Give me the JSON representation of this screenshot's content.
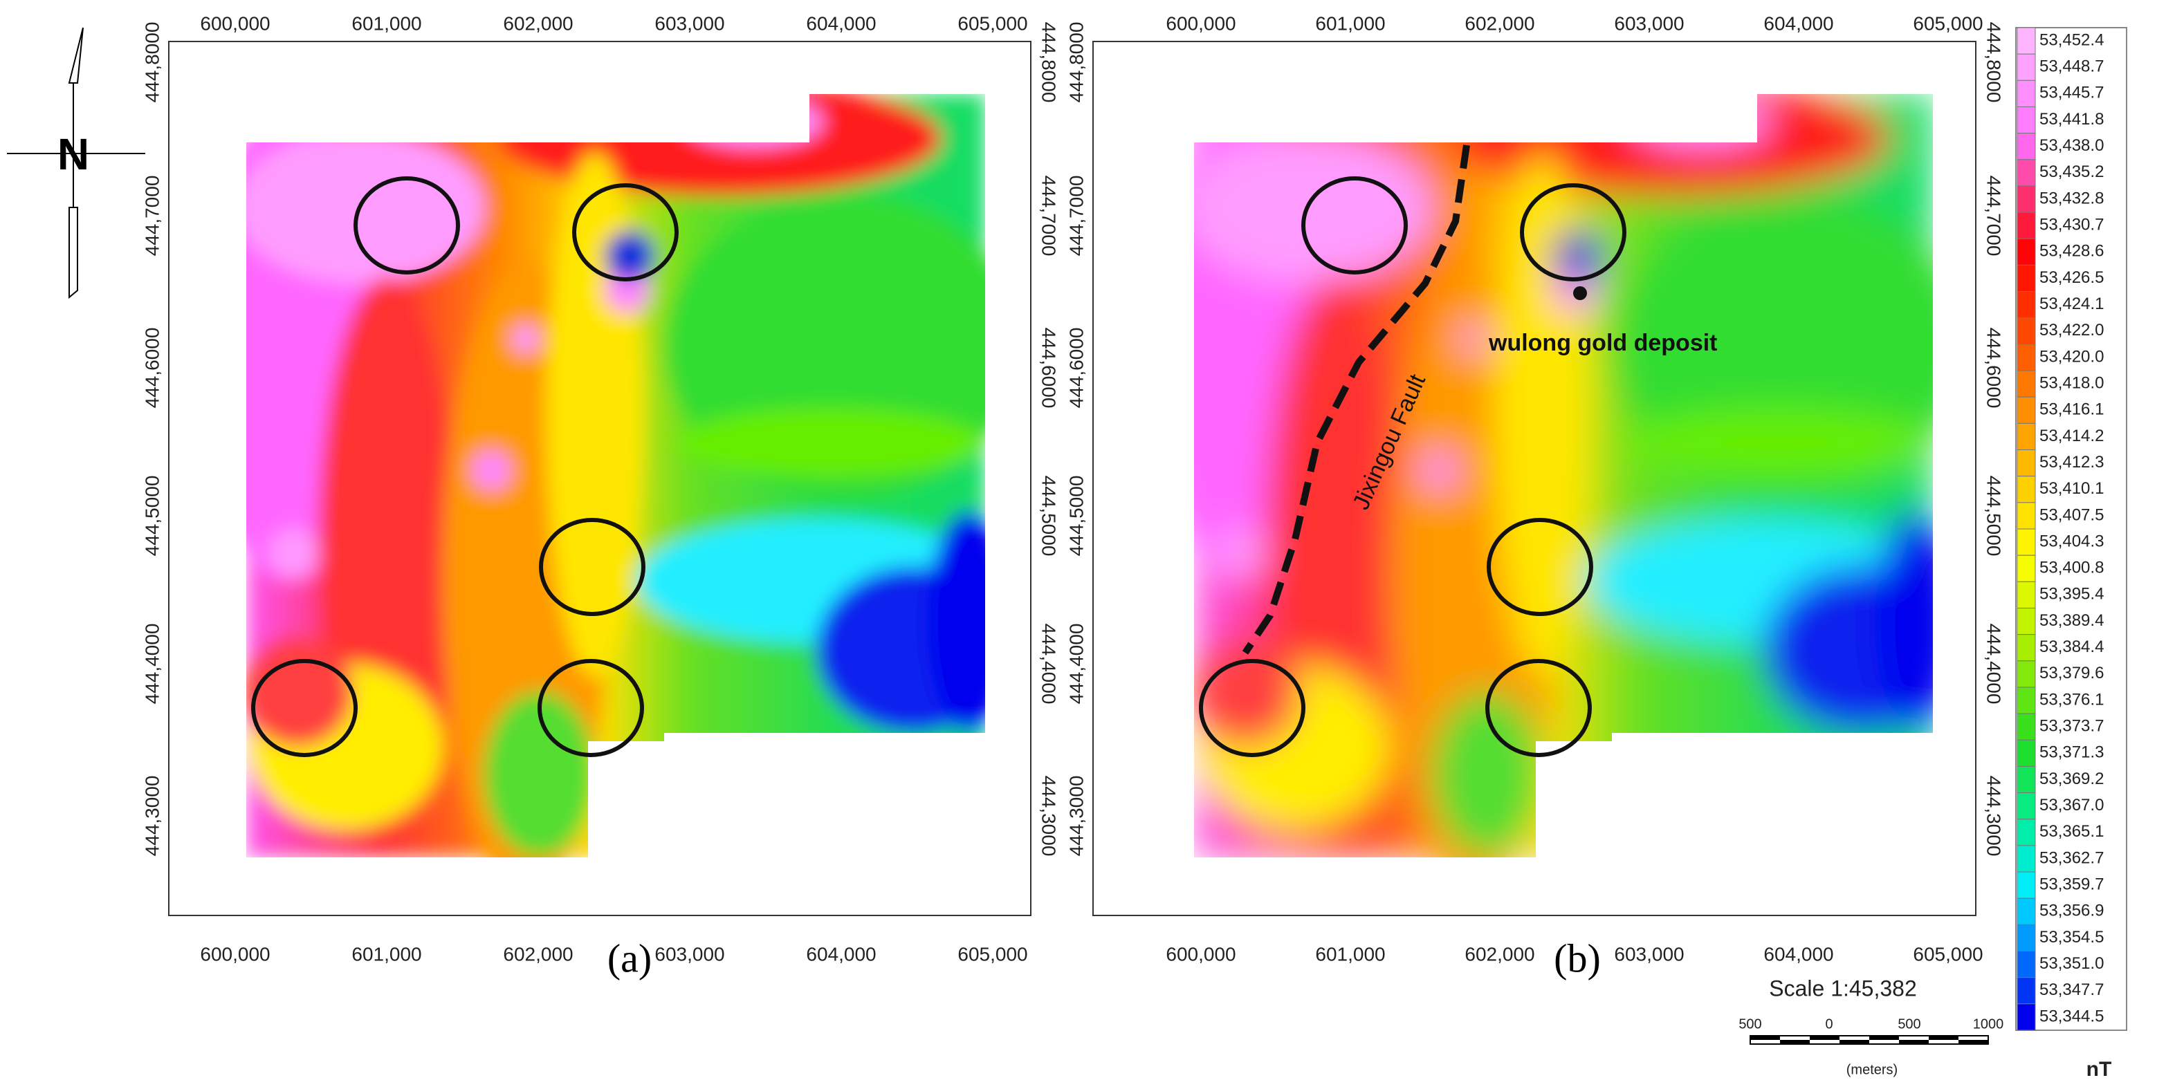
{
  "north": "N",
  "axes": {
    "x": [
      "600,000",
      "601,000",
      "602,000",
      "603,000",
      "604,000",
      "605,000"
    ],
    "y": [
      "444,8000",
      "444,7000",
      "444,6000",
      "444,5000",
      "444,4000",
      "444,3000"
    ]
  },
  "panels": [
    {
      "caption": "(a)"
    },
    {
      "caption": "(b)",
      "annotations": {
        "deposit": "wulong gold deposit",
        "fault": "Jixingou Fault"
      }
    }
  ],
  "legend": {
    "values": [
      "53,452.4",
      "53,448.7",
      "53,445.7",
      "53,441.8",
      "53,438.0",
      "53,435.2",
      "53,432.8",
      "53,430.7",
      "53,428.6",
      "53,426.5",
      "53,424.1",
      "53,422.0",
      "53,420.0",
      "53,418.0",
      "53,416.1",
      "53,414.2",
      "53,412.3",
      "53,410.1",
      "53,407.5",
      "53,404.3",
      "53,400.8",
      "53,395.4",
      "53,389.4",
      "53,384.4",
      "53,379.6",
      "53,376.1",
      "53,373.7",
      "53,371.3",
      "53,369.2",
      "53,367.0",
      "53,365.1",
      "53,362.7",
      "53,359.7",
      "53,356.9",
      "53,354.5",
      "53,351.0",
      "53,347.7",
      "53,344.5"
    ],
    "unit": "nT"
  },
  "scale": {
    "title": "Scale 1:45,382",
    "ticks": [
      "500",
      "0",
      "500",
      "1000"
    ],
    "unit": "(meters)"
  }
}
